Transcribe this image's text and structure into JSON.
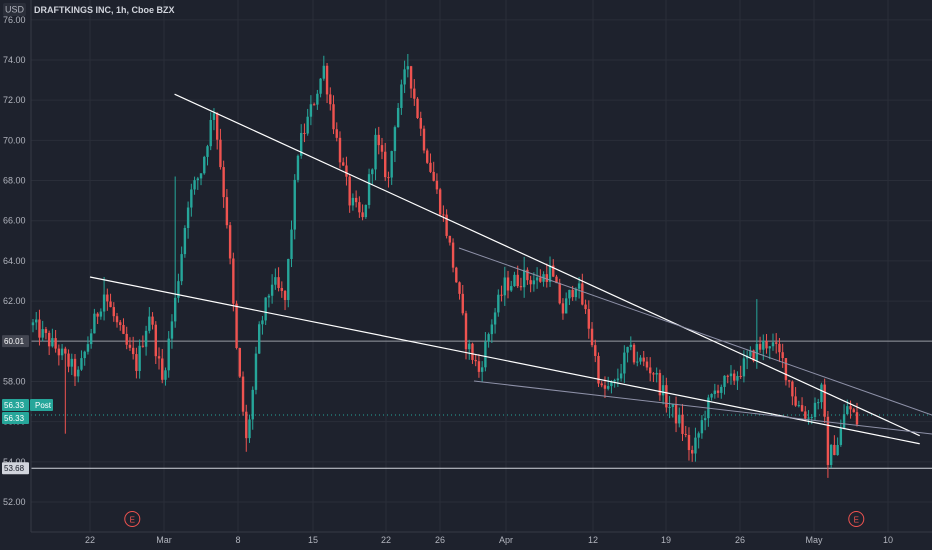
{
  "header": {
    "currency": "USD",
    "symbol_line": "DRAFTKINGS INC, 1h, Cboe BZX"
  },
  "colors": {
    "background": "#1e222d",
    "up": "#26a69a",
    "down": "#ef5350",
    "trendline": "#ffffff",
    "grid": "#2a2e39",
    "axis_text": "#b2b5be",
    "earnings_marker": "#ef5350"
  },
  "price_tags": {
    "level_60": "60.01",
    "post_label": "Post",
    "post_value": "56.33",
    "last_value": "56.33",
    "level_53": "53.68"
  },
  "earnings_marker_label": "E",
  "chart_data": {
    "type": "candlestick",
    "title": "DRAFTKINGS INC, 1h, Cboe BZX",
    "ylabel": "USD",
    "ylim": [
      51.2,
      76.0
    ],
    "y_ticks": [
      "52.00",
      "54.00",
      "56.00",
      "58.00",
      "60.00",
      "62.00",
      "64.00",
      "66.00",
      "68.00",
      "70.00",
      "72.00",
      "74.00",
      "76.00"
    ],
    "x_ticks": [
      "22",
      "Mar",
      "8",
      "15",
      "22",
      "26",
      "Apr",
      "12",
      "19",
      "26",
      "May",
      "10"
    ],
    "session_anchors": [
      [
        0,
        60.8
      ],
      [
        8,
        59.5
      ],
      [
        14,
        58.3
      ],
      [
        18,
        60.5
      ],
      [
        22,
        62.4
      ],
      [
        28,
        60.0
      ],
      [
        32,
        58.8
      ],
      [
        36,
        61.4
      ],
      [
        40,
        58.0
      ],
      [
        44,
        62.0
      ],
      [
        48,
        67.0
      ],
      [
        52,
        68.5
      ],
      [
        56,
        71.6
      ],
      [
        60,
        66.0
      ],
      [
        63,
        59.5
      ],
      [
        66,
        55.0
      ],
      [
        68,
        57.5
      ],
      [
        70,
        60.5
      ],
      [
        74,
        63.0
      ],
      [
        78,
        62.0
      ],
      [
        82,
        69.5
      ],
      [
        86,
        71.5
      ],
      [
        90,
        73.6
      ],
      [
        94,
        70.0
      ],
      [
        98,
        67.0
      ],
      [
        102,
        66.0
      ],
      [
        106,
        70.0
      ],
      [
        110,
        68.0
      ],
      [
        112,
        71.0
      ],
      [
        116,
        73.8
      ],
      [
        120,
        70.5
      ],
      [
        124,
        68.0
      ],
      [
        128,
        65.5
      ],
      [
        131,
        63.0
      ],
      [
        134,
        60.0
      ],
      [
        138,
        58.5
      ],
      [
        142,
        61.0
      ],
      [
        146,
        62.8
      ],
      [
        152,
        63.2
      ],
      [
        156,
        63.0
      ],
      [
        160,
        63.5
      ],
      [
        164,
        61.5
      ],
      [
        168,
        63.0
      ],
      [
        172,
        60.8
      ],
      [
        176,
        57.5
      ],
      [
        180,
        57.8
      ],
      [
        184,
        59.5
      ],
      [
        188,
        59.0
      ],
      [
        192,
        58.5
      ],
      [
        196,
        57.0
      ],
      [
        200,
        56.0
      ],
      [
        204,
        54.3
      ],
      [
        208,
        56.5
      ],
      [
        212,
        57.8
      ],
      [
        216,
        58.0
      ],
      [
        220,
        58.8
      ],
      [
        224,
        59.6
      ],
      [
        228,
        60.0
      ],
      [
        232,
        59.0
      ],
      [
        236,
        57.0
      ],
      [
        240,
        56.2
      ],
      [
        244,
        57.5
      ],
      [
        246,
        54.2
      ],
      [
        249,
        55.0
      ],
      [
        252,
        56.8
      ],
      [
        255,
        56.0
      ]
    ],
    "session_extremes": [
      [
        10,
        55.4
      ],
      [
        22,
        63.2
      ],
      [
        44,
        68.2
      ],
      [
        66,
        54.5
      ],
      [
        90,
        74.2
      ],
      [
        116,
        74.3
      ],
      [
        152,
        64.2
      ],
      [
        204,
        54.0
      ],
      [
        224,
        62.1
      ],
      [
        246,
        53.2
      ]
    ],
    "last_price": 56.33,
    "horizontal_levels": [
      60.01,
      53.68
    ],
    "trendlines": [
      {
        "from": {
          "x": "Feb 22",
          "y": 63.2
        },
        "to": {
          "x": "May 13",
          "y": 54.9
        }
      },
      {
        "from": {
          "x": "Mar 2",
          "y": 72.3
        },
        "to": {
          "x": "May 13",
          "y": 55.3
        }
      }
    ],
    "earnings_markers": [
      "Feb 26",
      "May 7"
    ]
  }
}
